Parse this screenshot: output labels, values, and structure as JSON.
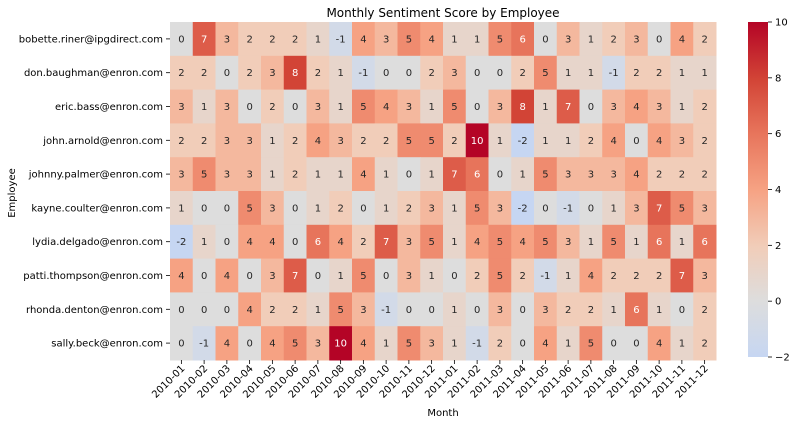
{
  "chart_data": {
    "type": "heatmap",
    "title": "Monthly Sentiment Score by Employee",
    "xlabel": "Month",
    "ylabel": "Employee",
    "x": [
      "2010-01",
      "2010-02",
      "2010-03",
      "2010-04",
      "2010-05",
      "2010-06",
      "2010-07",
      "2010-08",
      "2010-09",
      "2010-10",
      "2010-11",
      "2010-12",
      "2011-01",
      "2011-02",
      "2011-03",
      "2011-04",
      "2011-05",
      "2011-06",
      "2011-07",
      "2011-08",
      "2011-09",
      "2011-10",
      "2011-11",
      "2011-12"
    ],
    "y": [
      "bobette.riner@ipgdirect.com",
      "don.baughman@enron.com",
      "eric.bass@enron.com",
      "john.arnold@enron.com",
      "johnny.palmer@enron.com",
      "kayne.coulter@enron.com",
      "lydia.delgado@enron.com",
      "patti.thompson@enron.com",
      "rhonda.denton@enron.com",
      "sally.beck@enron.com"
    ],
    "values": [
      [
        0,
        7,
        3,
        2,
        2,
        2,
        1,
        -1,
        4,
        3,
        5,
        4,
        1,
        1,
        5,
        6,
        0,
        3,
        1,
        2,
        3,
        0,
        4,
        2
      ],
      [
        2,
        2,
        0,
        2,
        3,
        8,
        2,
        1,
        -1,
        0,
        0,
        2,
        3,
        0,
        0,
        2,
        5,
        1,
        1,
        -1,
        2,
        2,
        1,
        1
      ],
      [
        3,
        1,
        3,
        0,
        2,
        0,
        3,
        1,
        5,
        4,
        3,
        1,
        5,
        0,
        3,
        8,
        1,
        7,
        0,
        3,
        4,
        3,
        1,
        2
      ],
      [
        2,
        2,
        3,
        3,
        1,
        2,
        4,
        3,
        2,
        2,
        5,
        5,
        2,
        10,
        1,
        -2,
        1,
        1,
        2,
        4,
        0,
        4,
        3,
        2
      ],
      [
        3,
        5,
        3,
        3,
        1,
        2,
        1,
        1,
        4,
        1,
        0,
        1,
        7,
        6,
        0,
        1,
        5,
        3,
        3,
        3,
        4,
        2,
        2,
        2
      ],
      [
        1,
        0,
        0,
        5,
        3,
        0,
        1,
        2,
        0,
        1,
        2,
        3,
        1,
        5,
        3,
        -2,
        0,
        -1,
        0,
        1,
        3,
        7,
        5,
        3
      ],
      [
        -2,
        1,
        0,
        4,
        4,
        0,
        6,
        4,
        2,
        7,
        3,
        5,
        1,
        4,
        5,
        4,
        5,
        3,
        1,
        5,
        1,
        6,
        1,
        6
      ],
      [
        4,
        0,
        4,
        0,
        3,
        7,
        0,
        1,
        5,
        0,
        3,
        1,
        0,
        2,
        5,
        2,
        -1,
        1,
        4,
        2,
        2,
        2,
        7,
        3
      ],
      [
        0,
        0,
        0,
        4,
        2,
        2,
        1,
        5,
        3,
        -1,
        0,
        0,
        1,
        0,
        3,
        0,
        3,
        2,
        2,
        1,
        6,
        1,
        0,
        2
      ],
      [
        0,
        -1,
        4,
        0,
        4,
        5,
        3,
        10,
        4,
        1,
        5,
        3,
        1,
        -1,
        2,
        0,
        4,
        1,
        5,
        0,
        0,
        4,
        1,
        2
      ]
    ],
    "colorbar": {
      "min": -2,
      "max": 10,
      "ticks": [
        -2,
        0,
        2,
        4,
        6,
        8,
        10
      ]
    },
    "colormap": "coolwarm",
    "colors": {
      "low": "#3b4cc0",
      "mid": "#dddddd",
      "high": "#b40426"
    }
  }
}
